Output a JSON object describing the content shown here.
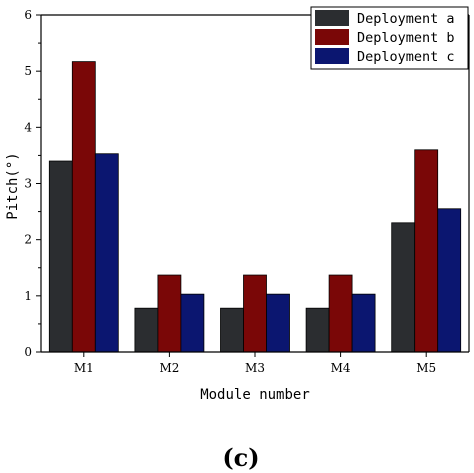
{
  "chart_data": {
    "type": "bar",
    "categories": [
      "M1",
      "M2",
      "M3",
      "M4",
      "M5"
    ],
    "series": [
      {
        "name": "Deployment a",
        "color": "#2b2d30",
        "values": [
          3.4,
          0.78,
          0.78,
          0.78,
          2.3
        ]
      },
      {
        "name": "Deployment b",
        "color": "#7a0707",
        "values": [
          5.17,
          1.37,
          1.37,
          1.37,
          3.6
        ]
      },
      {
        "name": "Deployment c",
        "color": "#0b1670",
        "values": [
          3.53,
          1.03,
          1.03,
          1.03,
          2.55
        ]
      }
    ],
    "xlabel": "Module number",
    "ylabel": "Pitch(°)",
    "ylim": [
      0,
      6
    ],
    "yticks": [
      "0",
      "1",
      "2",
      "3",
      "4",
      "5",
      "6"
    ],
    "grid": false,
    "legend_position": "top-right",
    "panel_label": "(c)"
  }
}
